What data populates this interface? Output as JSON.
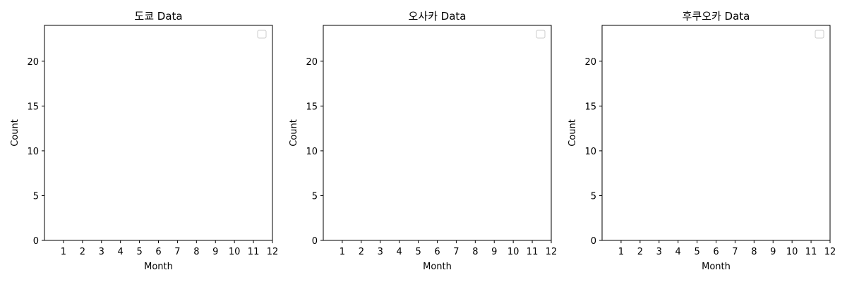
{
  "chart_data": [
    {
      "type": "bar",
      "title": "도쿄 Data",
      "xlabel": "Month",
      "ylabel": "Count",
      "x_ticks": [
        "1",
        "2",
        "3",
        "4",
        "5",
        "6",
        "7",
        "8",
        "9",
        "10",
        "11",
        "12"
      ],
      "y_ticks": [
        "0",
        "5",
        "10",
        "15",
        "20"
      ],
      "xlim": [
        0,
        12
      ],
      "ylim": [
        0,
        24
      ],
      "series": [],
      "grid": false,
      "legend": "top-right (empty)"
    },
    {
      "type": "bar",
      "title": "오사카 Data",
      "xlabel": "Month",
      "ylabel": "Count",
      "x_ticks": [
        "1",
        "2",
        "3",
        "4",
        "5",
        "6",
        "7",
        "8",
        "9",
        "10",
        "11",
        "12"
      ],
      "y_ticks": [
        "0",
        "5",
        "10",
        "15",
        "20"
      ],
      "xlim": [
        0,
        12
      ],
      "ylim": [
        0,
        24
      ],
      "series": [],
      "grid": false,
      "legend": "top-right (empty)"
    },
    {
      "type": "bar",
      "title": "후쿠오카 Data",
      "xlabel": "Month",
      "ylabel": "Count",
      "x_ticks": [
        "1",
        "2",
        "3",
        "4",
        "5",
        "6",
        "7",
        "8",
        "9",
        "10",
        "11",
        "12"
      ],
      "y_ticks": [
        "0",
        "5",
        "10",
        "15",
        "20"
      ],
      "xlim": [
        0,
        12
      ],
      "ylim": [
        0,
        24
      ],
      "series": [],
      "grid": false,
      "legend": "top-right (empty)"
    }
  ]
}
